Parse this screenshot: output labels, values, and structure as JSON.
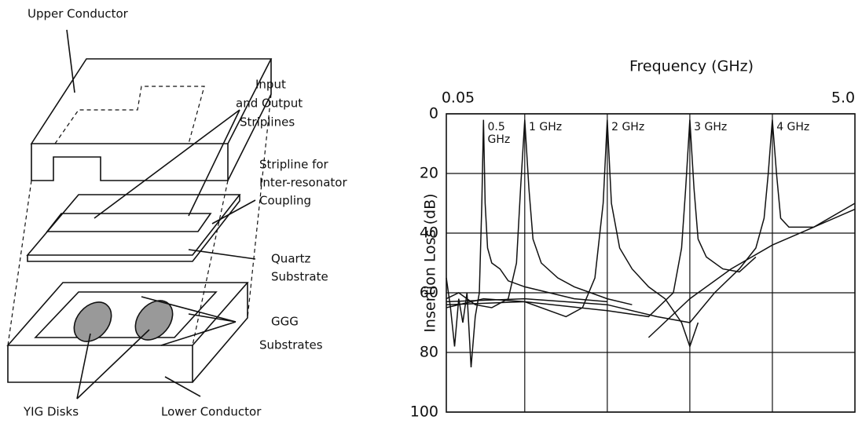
{
  "diagram": {
    "labels": [
      "Upper Conductor",
      "Input",
      "and Output",
      "Striplines",
      "Stripline for",
      "Inter-resonator",
      "Coupling",
      "Quartz",
      "Substrate",
      "GGG",
      "Substrates",
      "YIG Disks",
      "Lower Conductor"
    ]
  },
  "chart_data": {
    "type": "line",
    "title": "Frequency (GHz)",
    "y_label": "Insertion Loss (dB)",
    "xlim": [
      0.05,
      5.0
    ],
    "xticks": [
      0.05,
      {
        "value": 5.0,
        "label": "5.0"
      }
    ],
    "xgrid": [
      1,
      2,
      3,
      4
    ],
    "ylim": [
      0,
      100
    ],
    "yticks": [
      0,
      20,
      40,
      60,
      80,
      100
    ],
    "y_inverted": true,
    "grid": true,
    "annotations": [
      "0.5",
      "GHz",
      "1 GHz",
      "2 GHz",
      "3 GHz",
      "4 GHz"
    ],
    "series": [
      {
        "color": "#111",
        "x": [
          0.05,
          0.1,
          0.15,
          0.2,
          0.25,
          0.3,
          0.35,
          0.4,
          0.45,
          0.48,
          0.5,
          0.52,
          0.55,
          0.6,
          0.7,
          0.8,
          1.0,
          1.3,
          1.6,
          2.0
        ],
        "values": [
          55,
          65,
          78,
          62,
          70,
          60,
          85,
          68,
          60,
          30,
          2,
          30,
          45,
          50,
          52,
          56,
          58,
          60,
          62,
          63
        ]
      },
      {
        "color": "#111",
        "x": [
          0.05,
          0.2,
          0.4,
          0.6,
          0.8,
          0.9,
          0.95,
          1.0,
          1.05,
          1.1,
          1.2,
          1.4,
          1.6,
          1.8,
          2.0,
          2.3
        ],
        "values": [
          62,
          60,
          64,
          65,
          62,
          50,
          25,
          2,
          25,
          42,
          50,
          55,
          58,
          60,
          62,
          64
        ]
      },
      {
        "color": "#111",
        "x": [
          0.05,
          0.5,
          1.0,
          1.5,
          1.7,
          1.85,
          1.95,
          2.0,
          2.05,
          2.15,
          2.3,
          2.5,
          2.7,
          2.9,
          3.0,
          3.1
        ],
        "values": [
          65,
          62,
          63,
          68,
          65,
          55,
          30,
          2,
          30,
          45,
          52,
          58,
          62,
          70,
          78,
          70
        ]
      },
      {
        "color": "#111",
        "x": [
          0.05,
          1.0,
          2.0,
          2.5,
          2.8,
          2.9,
          2.95,
          3.0,
          3.05,
          3.1,
          3.2,
          3.4,
          3.6,
          3.8
        ],
        "values": [
          64,
          63,
          66,
          68,
          60,
          45,
          25,
          2,
          25,
          42,
          48,
          52,
          53,
          48
        ]
      },
      {
        "color": "#111",
        "x": [
          0.05,
          1.0,
          2.0,
          2.6,
          3.0,
          3.3,
          3.6,
          3.8,
          3.9,
          3.95,
          4.0,
          4.05,
          4.1,
          4.2,
          4.5,
          5.0
        ],
        "values": [
          63,
          62,
          64,
          68,
          70,
          60,
          52,
          45,
          35,
          20,
          2,
          20,
          35,
          38,
          38,
          32
        ]
      },
      {
        "color": "#111",
        "x": [
          2.5,
          3.0,
          3.5,
          4.0,
          4.5,
          5.0
        ],
        "values": [
          75,
          62,
          52,
          44,
          38,
          30
        ]
      }
    ]
  }
}
